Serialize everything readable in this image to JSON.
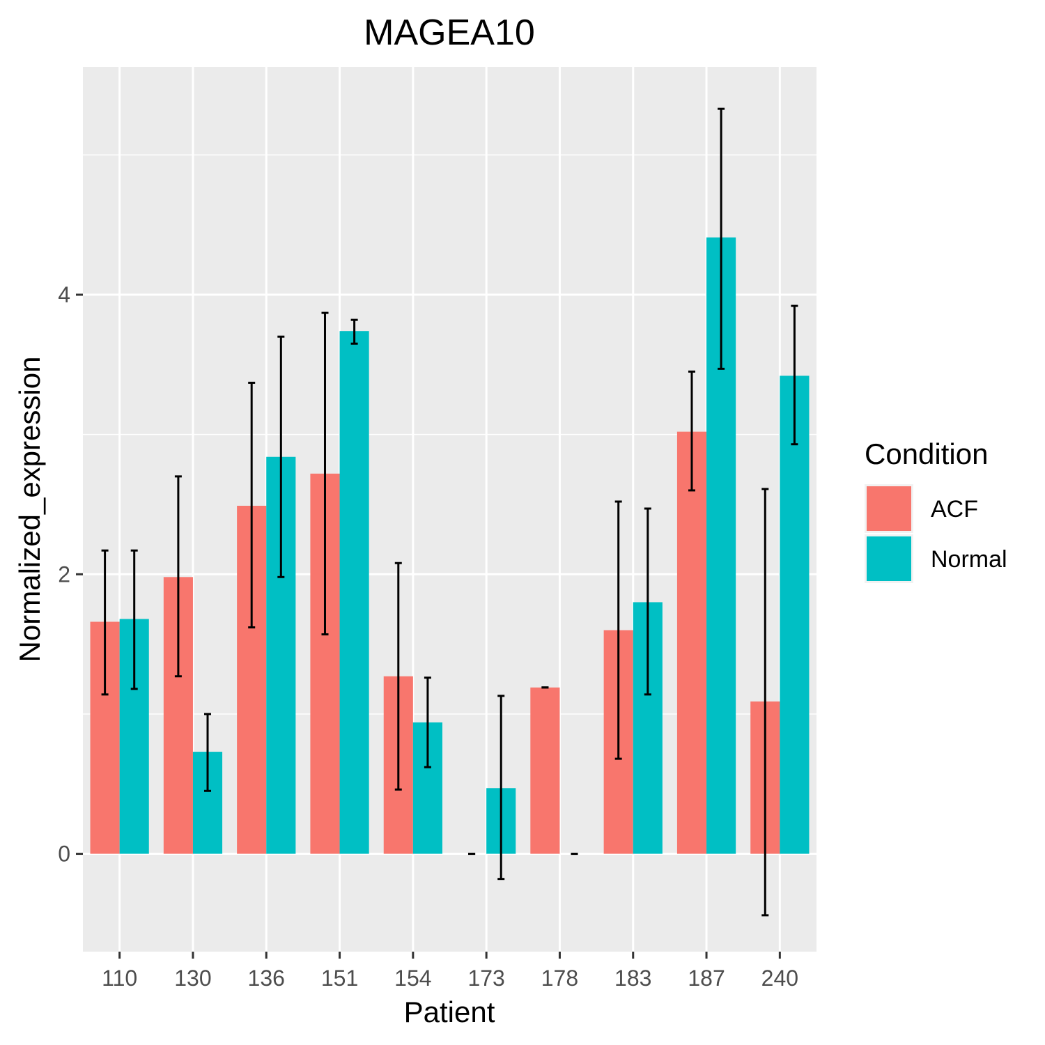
{
  "chart_data": {
    "type": "bar",
    "title": "MAGEA10",
    "xlabel": "Patient",
    "ylabel": "Normalized_expression",
    "categories": [
      "110",
      "130",
      "136",
      "151",
      "154",
      "173",
      "178",
      "183",
      "187",
      "240"
    ],
    "ylim": [
      -0.7,
      5.63
    ],
    "yticks": [
      0,
      2,
      4
    ],
    "grid": true,
    "legend": {
      "title": "Condition",
      "position": "right"
    },
    "series": [
      {
        "name": "ACF",
        "color": "#F8766D",
        "values": [
          1.66,
          1.98,
          2.49,
          2.72,
          1.27,
          0.0,
          1.19,
          1.6,
          3.02,
          1.09
        ],
        "error_low": [
          1.14,
          1.27,
          1.62,
          1.57,
          0.46,
          0.0,
          1.19,
          0.68,
          2.6,
          -0.44
        ],
        "error_high": [
          2.17,
          2.7,
          3.37,
          3.87,
          2.08,
          0.0,
          1.19,
          2.52,
          3.45,
          2.61
        ]
      },
      {
        "name": "Normal",
        "color": "#00BFC4",
        "values": [
          1.68,
          0.73,
          2.84,
          3.74,
          0.94,
          0.47,
          0.0,
          1.8,
          4.41,
          3.42
        ],
        "error_low": [
          1.18,
          0.45,
          1.98,
          3.65,
          0.62,
          -0.18,
          0.0,
          1.14,
          3.47,
          2.93
        ],
        "error_high": [
          2.17,
          1.0,
          3.7,
          3.82,
          1.26,
          1.13,
          0.0,
          2.47,
          5.33,
          3.92
        ]
      }
    ]
  }
}
